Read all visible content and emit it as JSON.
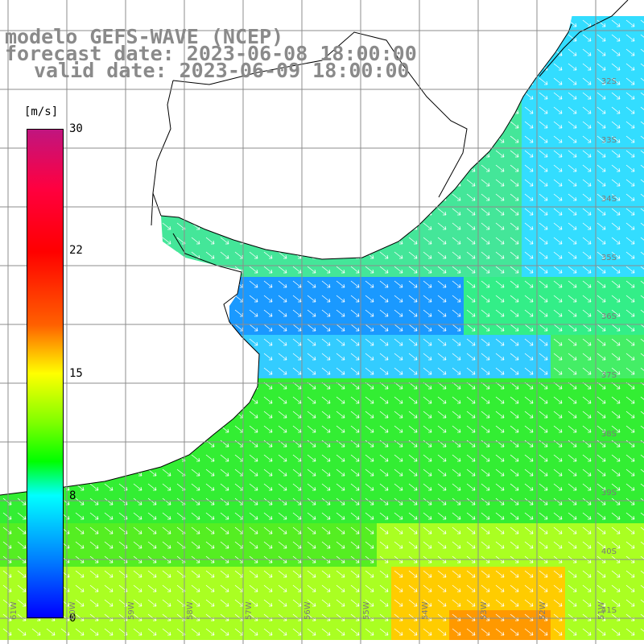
{
  "title": {
    "line1": "modelo GEFS-WAVE (NCEP)",
    "line2": "forecast date: 2023-06-08 18:00:00",
    "line3": "valid date: 2023-06-09 18:00:00"
  },
  "colorbar": {
    "unit": "[m/s]",
    "ticks": [
      "30",
      "22",
      "15",
      "8",
      "0"
    ],
    "colors": [
      "#0000ff",
      "#0080ff",
      "#00ffff",
      "#00ff00",
      "#80ff00",
      "#ffff00",
      "#ff8000",
      "#ff0000",
      "#cc0066",
      "#c0157f"
    ]
  },
  "map": {
    "lat_labels": [
      "32S",
      "33S",
      "34S",
      "35S",
      "36S",
      "37S",
      "38S",
      "39S",
      "40S",
      "41S"
    ],
    "lon_labels": [
      "61W",
      "60W",
      "59W",
      "58W",
      "57W",
      "56W",
      "55W",
      "54W",
      "53W",
      "52W",
      "51W"
    ],
    "land_color": "#ffffff",
    "grid_color": "#8c8c8c",
    "arrow_color": "#ffffff"
  }
}
